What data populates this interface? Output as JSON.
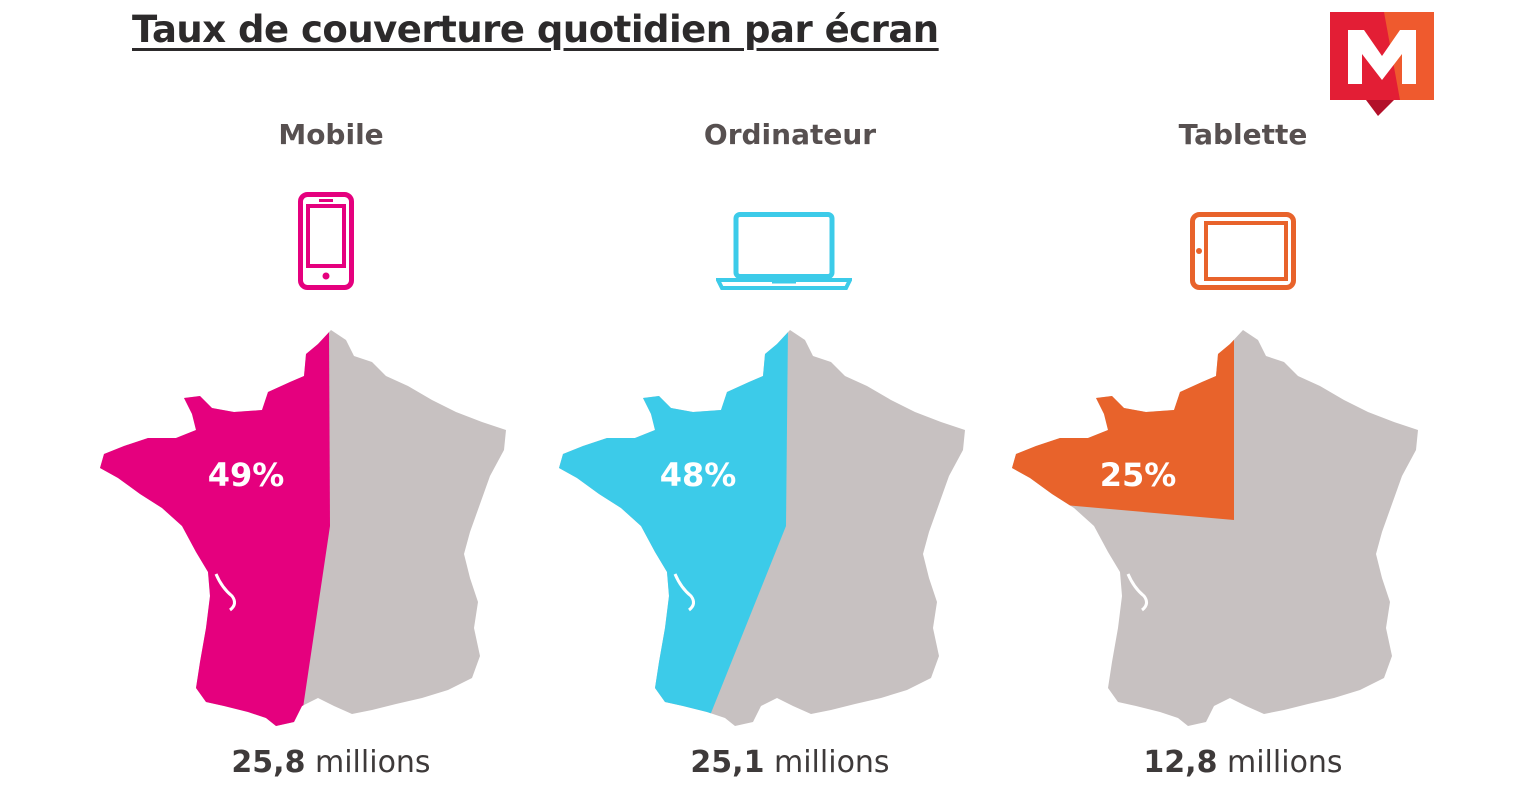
{
  "title": "Taux de couverture quotidien par écran",
  "colors": {
    "mobile": "#e5007e",
    "ordinateur": "#3ccbe9",
    "tablette": "#e8632b",
    "base": "#c7c1c1"
  },
  "chart_data": {
    "type": "map",
    "title": "Taux de couverture quotidien par écran",
    "categories": [
      "Mobile",
      "Ordinateur",
      "Tablette"
    ],
    "values": [
      49,
      48,
      25
    ],
    "value_labels": [
      "49%",
      "48%",
      "25%"
    ],
    "audience_number": [
      "25,8",
      "25,1",
      "12,8"
    ],
    "audience_unit": "millions",
    "icons": [
      "smartphone-icon",
      "laptop-icon",
      "tablet-icon"
    ]
  }
}
